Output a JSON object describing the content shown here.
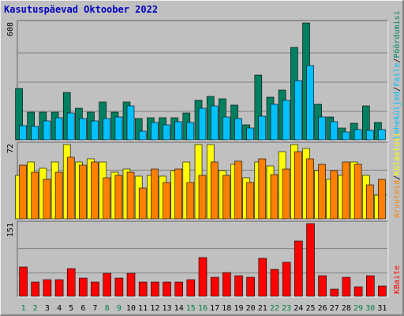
{
  "title": "Kasutuspäevad Oktoober 2022",
  "chart_data": [
    {
      "type": "bar",
      "panel": "hits-files-pages",
      "ymax_label": "608",
      "ylabel_parts": [
        "Pöördumisi",
        "/",
        "Faile",
        "/",
        "Leheküljed"
      ],
      "categories": [
        "1",
        "2",
        "3",
        "4",
        "5",
        "6",
        "7",
        "8",
        "9",
        "10",
        "11",
        "12",
        "13",
        "14",
        "15",
        "16",
        "17",
        "18",
        "19",
        "20",
        "21",
        "22",
        "23",
        "24",
        "25",
        "26",
        "27",
        "28",
        "29",
        "30",
        "31"
      ],
      "weekend_days": [
        "1",
        "2",
        "8",
        "9",
        "15",
        "16",
        "22",
        "23",
        "29",
        "30"
      ],
      "series": [
        {
          "name": "Pöördumisi",
          "color": "#008060",
          "values": [
            265,
            145,
            145,
            145,
            248,
            165,
            145,
            198,
            145,
            198,
            110,
            115,
            115,
            115,
            140,
            205,
            225,
            215,
            180,
            80,
            335,
            220,
            260,
            480,
            608,
            185,
            120,
            60,
            85,
            175,
            90
          ]
        },
        {
          "name": "Faile",
          "color": "#00c0ff",
          "values": [
            75,
            70,
            100,
            115,
            140,
            110,
            100,
            110,
            120,
            175,
            45,
            90,
            80,
            95,
            90,
            165,
            175,
            120,
            110,
            60,
            125,
            185,
            205,
            310,
            385,
            120,
            95,
            40,
            55,
            50,
            55
          ]
        }
      ]
    },
    {
      "type": "bar",
      "panel": "visits-kilobytes",
      "ymax_label": "72",
      "ylabel_parts": [
        "Arvuteid",
        "/",
        "Külastusi"
      ],
      "categories": [
        "1",
        "2",
        "3",
        "4",
        "5",
        "6",
        "7",
        "8",
        "9",
        "10",
        "11",
        "12",
        "13",
        "14",
        "15",
        "16",
        "17",
        "18",
        "19",
        "20",
        "21",
        "22",
        "23",
        "24",
        "25",
        "26",
        "27",
        "28",
        "29",
        "30",
        "31"
      ],
      "series": [
        {
          "name": "Külastusi",
          "color": "#ffff00",
          "values": [
            42,
            55,
            49,
            55,
            72,
            55,
            58,
            55,
            45,
            48,
            41,
            42,
            41,
            47,
            55,
            72,
            72,
            47,
            53,
            40,
            55,
            51,
            65,
            72,
            68,
            47,
            38,
            42,
            55,
            42,
            23
          ]
        },
        {
          "name": "Arvuteid",
          "color": "#ff8000",
          "values": [
            52,
            45,
            38,
            45,
            60,
            52,
            55,
            40,
            42,
            45,
            30,
            48,
            35,
            48,
            35,
            42,
            55,
            42,
            56,
            35,
            58,
            43,
            48,
            65,
            58,
            53,
            47,
            55,
            53,
            33,
            38
          ]
        }
      ]
    },
    {
      "type": "bar",
      "panel": "kbytes",
      "ymax_label": "151",
      "ylabel_parts": [
        "KBaite"
      ],
      "categories": [
        "1",
        "2",
        "3",
        "4",
        "5",
        "6",
        "7",
        "8",
        "9",
        "10",
        "11",
        "12",
        "13",
        "14",
        "15",
        "16",
        "17",
        "18",
        "19",
        "20",
        "21",
        "22",
        "23",
        "24",
        "25",
        "26",
        "27",
        "28",
        "29",
        "30",
        "31"
      ],
      "series": [
        {
          "name": "KBaite",
          "color": "#ff0000",
          "values": [
            60,
            30,
            35,
            35,
            58,
            38,
            30,
            48,
            38,
            48,
            30,
            30,
            30,
            30,
            35,
            80,
            40,
            50,
            42,
            40,
            78,
            55,
            70,
            115,
            151,
            42,
            15,
            40,
            20,
            42,
            22
          ]
        }
      ]
    }
  ],
  "colors": {
    "background": "#c0c0c0",
    "title": "#0000c0",
    "weekday_label": "#008040",
    "weekday_label_weekday": "#000000",
    "grid": "#808080"
  }
}
